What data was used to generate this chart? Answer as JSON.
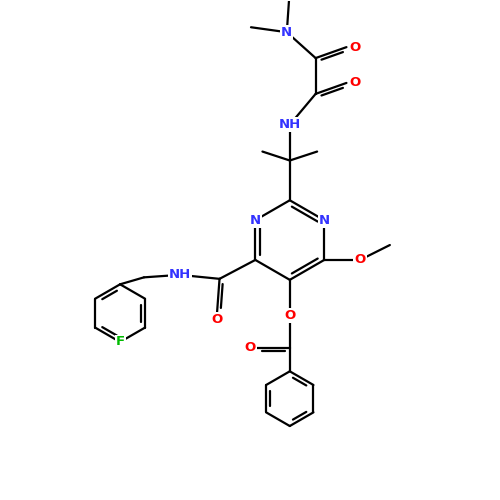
{
  "bg": "#ffffff",
  "C": "#000000",
  "N": "#3333ff",
  "O": "#ff0000",
  "F": "#00bb00",
  "lw": 1.6,
  "fs": 9.5,
  "dbo": 0.07,
  "xlim": [
    0,
    10
  ],
  "ylim": [
    0,
    10
  ]
}
